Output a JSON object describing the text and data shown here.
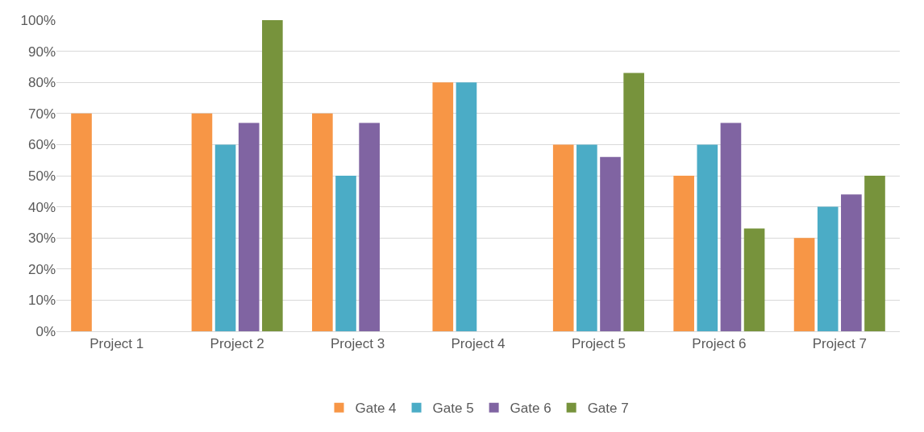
{
  "chart_data": {
    "type": "bar",
    "categories": [
      "Project 1",
      "Project 2",
      "Project 3",
      "Project 4",
      "Project 5",
      "Project 6",
      "Project 7"
    ],
    "series": [
      {
        "name": "Gate 4",
        "color": "#f79646",
        "values": [
          70,
          70,
          70,
          80,
          60,
          50,
          30
        ]
      },
      {
        "name": "Gate 5",
        "color": "#4bacc6",
        "values": [
          null,
          60,
          50,
          80,
          60,
          60,
          40
        ]
      },
      {
        "name": "Gate 6",
        "color": "#8064a2",
        "values": [
          null,
          67,
          67,
          null,
          56,
          67,
          44
        ]
      },
      {
        "name": "Gate 7",
        "color": "#77933c",
        "values": [
          null,
          100,
          null,
          null,
          83,
          33,
          50
        ]
      }
    ],
    "ylim": [
      0,
      100
    ],
    "yticks": [
      {
        "value": 0,
        "label": "0%"
      },
      {
        "value": 10,
        "label": "10%"
      },
      {
        "value": 20,
        "label": "20%"
      },
      {
        "value": 30,
        "label": "30%"
      },
      {
        "value": 40,
        "label": "40%"
      },
      {
        "value": 50,
        "label": "50%"
      },
      {
        "value": 60,
        "label": "60%"
      },
      {
        "value": 70,
        "label": "70%"
      },
      {
        "value": 80,
        "label": "80%"
      },
      {
        "value": 90,
        "label": "90%"
      },
      {
        "value": 100,
        "label": "100%"
      }
    ],
    "grid": "y",
    "legend": "bottom"
  }
}
